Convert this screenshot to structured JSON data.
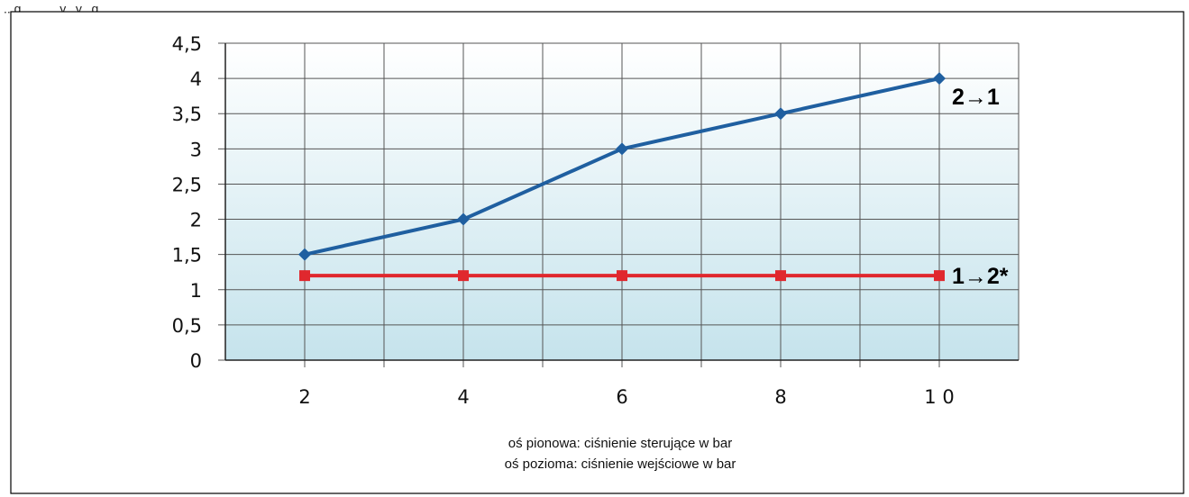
{
  "header_fragment": "...g... ... ...y...y...g...",
  "chart_data": {
    "type": "line",
    "x": [
      2,
      4,
      6,
      8,
      10
    ],
    "x_tick_labels": [
      "2",
      "4",
      "6",
      "8",
      "1 0"
    ],
    "y_tick_labels": [
      "0",
      "0,5",
      "1",
      "1,5",
      "2",
      "2,5",
      "3",
      "3,5",
      "4",
      "4,5"
    ],
    "ylim": [
      0,
      4.5
    ],
    "xlim": [
      1,
      11
    ],
    "grid": true,
    "series": [
      {
        "name": "2→1",
        "color": "#1f5fa0",
        "marker": "diamond",
        "values": [
          1.5,
          2,
          3,
          3.5,
          4
        ]
      },
      {
        "name": "1→2*",
        "color": "#e0282e",
        "marker": "square",
        "values": [
          1.2,
          1.2,
          1.2,
          1.2,
          1.2
        ]
      }
    ],
    "captions": [
      "oś pionowa: ciśnienie sterujące w  bar",
      "oś pozioma: ciśnienie wejściowe w bar"
    ]
  }
}
